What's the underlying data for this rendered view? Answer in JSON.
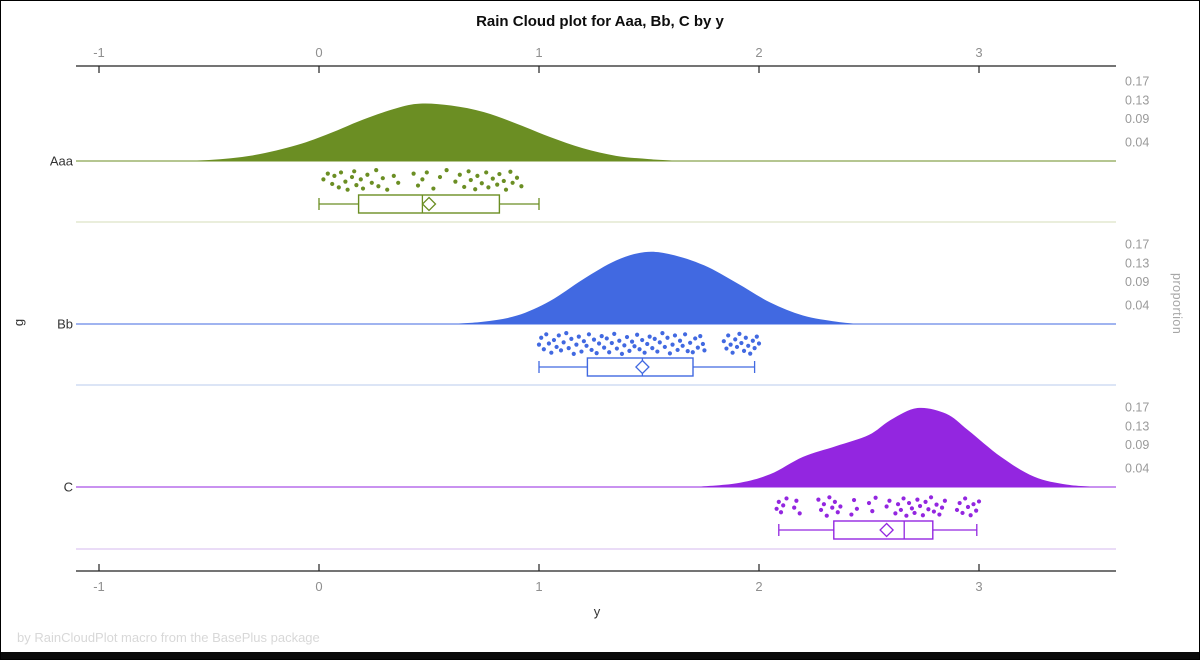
{
  "title": "Rain Cloud plot for Aaa, Bb, C by y",
  "footer": "by RainCloudPlot macro from the BasePlus package",
  "axes": {
    "x_label": "y",
    "y_label": "g",
    "y2_label": "proportion",
    "x_ticks": [
      -1,
      0,
      1,
      2,
      3
    ],
    "x_range": [
      -1.1,
      3.62
    ],
    "proportion_ticks": [
      0.17,
      0.13,
      0.09,
      0.04
    ]
  },
  "chart_data": {
    "type": "raincloud",
    "title": "Rain Cloud plot for Aaa, Bb, C by y",
    "xlabel": "y",
    "ylabel": "g",
    "y2label": "proportion",
    "x_ticks": [
      -1,
      0,
      1,
      2,
      3
    ],
    "proportion_ticks": [
      0.17,
      0.13,
      0.09,
      0.04
    ],
    "groups": [
      {
        "name": "Aaa",
        "color": "#6B8E23",
        "separator_color": "#DDE3C6",
        "density": {
          "x": [
            -0.7,
            -0.5,
            -0.3,
            -0.1,
            0.05,
            0.2,
            0.35,
            0.46,
            0.6,
            0.75,
            0.9,
            1.05,
            1.2,
            1.35,
            1.5,
            1.65
          ],
          "y": [
            0,
            0.002,
            0.012,
            0.034,
            0.059,
            0.088,
            0.112,
            0.122,
            0.118,
            0.104,
            0.079,
            0.051,
            0.027,
            0.011,
            0.004,
            0
          ]
        },
        "box": {
          "low": 0.0,
          "q1": 0.18,
          "median": 0.47,
          "mean": 0.5,
          "q3": 0.82,
          "high": 1.0
        },
        "points": [
          [
            0.02,
            0.45
          ],
          [
            0.04,
            0.2
          ],
          [
            0.06,
            0.65
          ],
          [
            0.07,
            0.3
          ],
          [
            0.09,
            0.8
          ],
          [
            0.1,
            0.15
          ],
          [
            0.12,
            0.55
          ],
          [
            0.13,
            0.9
          ],
          [
            0.15,
            0.35
          ],
          [
            0.16,
            0.1
          ],
          [
            0.17,
            0.7
          ],
          [
            0.19,
            0.45
          ],
          [
            0.2,
            0.85
          ],
          [
            0.22,
            0.25
          ],
          [
            0.24,
            0.6
          ],
          [
            0.26,
            0.05
          ],
          [
            0.27,
            0.75
          ],
          [
            0.29,
            0.4
          ],
          [
            0.31,
            0.9
          ],
          [
            0.34,
            0.3
          ],
          [
            0.36,
            0.6
          ],
          [
            0.43,
            0.2
          ],
          [
            0.45,
            0.72
          ],
          [
            0.47,
            0.45
          ],
          [
            0.49,
            0.15
          ],
          [
            0.52,
            0.85
          ],
          [
            0.55,
            0.35
          ],
          [
            0.58,
            0.05
          ],
          [
            0.62,
            0.55
          ],
          [
            0.64,
            0.25
          ],
          [
            0.66,
            0.78
          ],
          [
            0.68,
            0.1
          ],
          [
            0.69,
            0.48
          ],
          [
            0.71,
            0.88
          ],
          [
            0.72,
            0.3
          ],
          [
            0.74,
            0.62
          ],
          [
            0.76,
            0.15
          ],
          [
            0.77,
            0.8
          ],
          [
            0.79,
            0.42
          ],
          [
            0.81,
            0.68
          ],
          [
            0.82,
            0.22
          ],
          [
            0.84,
            0.52
          ],
          [
            0.85,
            0.9
          ],
          [
            0.87,
            0.12
          ],
          [
            0.88,
            0.6
          ],
          [
            0.9,
            0.38
          ],
          [
            0.92,
            0.75
          ]
        ]
      },
      {
        "name": "Bb",
        "color": "#4169E1",
        "separator_color": "#C8D5F1",
        "density": {
          "x": [
            0.6,
            0.75,
            0.9,
            1.05,
            1.2,
            1.35,
            1.48,
            1.6,
            1.75,
            1.9,
            2.05,
            2.2,
            2.35,
            2.45
          ],
          "y": [
            0,
            0.005,
            0.018,
            0.049,
            0.095,
            0.135,
            0.153,
            0.148,
            0.125,
            0.087,
            0.046,
            0.018,
            0.005,
            0
          ]
        },
        "box": {
          "low": 1.0,
          "q1": 1.22,
          "median": 1.47,
          "mean": 1.47,
          "q3": 1.7,
          "high": 1.98
        },
        "points": [
          [
            1.0,
            0.55
          ],
          [
            1.01,
            0.25
          ],
          [
            1.022,
            0.75
          ],
          [
            1.033,
            0.1
          ],
          [
            1.045,
            0.5
          ],
          [
            1.056,
            0.9
          ],
          [
            1.068,
            0.35
          ],
          [
            1.08,
            0.65
          ],
          [
            1.09,
            0.15
          ],
          [
            1.1,
            0.8
          ],
          [
            1.112,
            0.45
          ],
          [
            1.124,
            0.05
          ],
          [
            1.135,
            0.7
          ],
          [
            1.147,
            0.3
          ],
          [
            1.158,
            0.95
          ],
          [
            1.17,
            0.55
          ],
          [
            1.181,
            0.2
          ],
          [
            1.193,
            0.85
          ],
          [
            1.204,
            0.4
          ],
          [
            1.216,
            0.6
          ],
          [
            1.227,
            0.1
          ],
          [
            1.239,
            0.78
          ],
          [
            1.25,
            0.33
          ],
          [
            1.262,
            0.92
          ],
          [
            1.273,
            0.5
          ],
          [
            1.285,
            0.18
          ],
          [
            1.296,
            0.68
          ],
          [
            1.308,
            0.28
          ],
          [
            1.319,
            0.88
          ],
          [
            1.331,
            0.48
          ],
          [
            1.342,
            0.08
          ],
          [
            1.354,
            0.72
          ],
          [
            1.365,
            0.38
          ],
          [
            1.377,
            0.95
          ],
          [
            1.388,
            0.58
          ],
          [
            1.4,
            0.22
          ],
          [
            1.411,
            0.82
          ],
          [
            1.423,
            0.42
          ],
          [
            1.434,
            0.62
          ],
          [
            1.446,
            0.12
          ],
          [
            1.457,
            0.75
          ],
          [
            1.469,
            0.35
          ],
          [
            1.48,
            0.9
          ],
          [
            1.492,
            0.52
          ],
          [
            1.503,
            0.2
          ],
          [
            1.515,
            0.7
          ],
          [
            1.526,
            0.3
          ],
          [
            1.538,
            0.85
          ],
          [
            1.549,
            0.45
          ],
          [
            1.561,
            0.05
          ],
          [
            1.572,
            0.65
          ],
          [
            1.584,
            0.25
          ],
          [
            1.595,
            0.93
          ],
          [
            1.607,
            0.55
          ],
          [
            1.618,
            0.15
          ],
          [
            1.63,
            0.78
          ],
          [
            1.641,
            0.38
          ],
          [
            1.653,
            0.6
          ],
          [
            1.664,
            0.1
          ],
          [
            1.676,
            0.83
          ],
          [
            1.687,
            0.47
          ],
          [
            1.699,
            0.88
          ],
          [
            1.71,
            0.28
          ],
          [
            1.722,
            0.68
          ],
          [
            1.733,
            0.18
          ],
          [
            1.745,
            0.52
          ],
          [
            1.752,
            0.8
          ],
          [
            1.84,
            0.4
          ],
          [
            1.852,
            0.72
          ],
          [
            1.86,
            0.15
          ],
          [
            1.871,
            0.55
          ],
          [
            1.88,
            0.9
          ],
          [
            1.892,
            0.32
          ],
          [
            1.9,
            0.65
          ],
          [
            1.911,
            0.08
          ],
          [
            1.92,
            0.48
          ],
          [
            1.932,
            0.82
          ],
          [
            1.94,
            0.25
          ],
          [
            1.951,
            0.6
          ],
          [
            1.96,
            0.94
          ],
          [
            1.972,
            0.38
          ],
          [
            1.98,
            0.7
          ],
          [
            1.99,
            0.2
          ],
          [
            2.0,
            0.5
          ]
        ]
      },
      {
        "name": "C",
        "color": "#9326E0",
        "separator_color": "#DDC6F2",
        "density": {
          "x": [
            1.7,
            1.9,
            2.05,
            2.2,
            2.35,
            2.5,
            2.6,
            2.72,
            2.85,
            2.95,
            3.1,
            3.25,
            3.4,
            3.55
          ],
          "y": [
            0,
            0.008,
            0.027,
            0.064,
            0.087,
            0.111,
            0.143,
            0.168,
            0.156,
            0.121,
            0.064,
            0.022,
            0.005,
            0
          ]
        },
        "box": {
          "low": 2.09,
          "q1": 2.34,
          "median": 2.66,
          "mean": 2.58,
          "q3": 2.79,
          "high": 2.99
        },
        "points": [
          [
            2.08,
            0.6
          ],
          [
            2.09,
            0.3
          ],
          [
            2.1,
            0.75
          ],
          [
            2.11,
            0.45
          ],
          [
            2.125,
            0.15
          ],
          [
            2.16,
            0.55
          ],
          [
            2.17,
            0.25
          ],
          [
            2.185,
            0.8
          ],
          [
            2.27,
            0.2
          ],
          [
            2.282,
            0.65
          ],
          [
            2.295,
            0.4
          ],
          [
            2.308,
            0.9
          ],
          [
            2.32,
            0.1
          ],
          [
            2.333,
            0.55
          ],
          [
            2.345,
            0.3
          ],
          [
            2.358,
            0.75
          ],
          [
            2.37,
            0.5
          ],
          [
            2.42,
            0.85
          ],
          [
            2.432,
            0.22
          ],
          [
            2.445,
            0.6
          ],
          [
            2.5,
            0.35
          ],
          [
            2.515,
            0.7
          ],
          [
            2.53,
            0.12
          ],
          [
            2.58,
            0.5
          ],
          [
            2.593,
            0.25
          ],
          [
            2.62,
            0.8
          ],
          [
            2.632,
            0.4
          ],
          [
            2.645,
            0.65
          ],
          [
            2.657,
            0.15
          ],
          [
            2.67,
            0.9
          ],
          [
            2.682,
            0.35
          ],
          [
            2.695,
            0.58
          ],
          [
            2.707,
            0.78
          ],
          [
            2.72,
            0.2
          ],
          [
            2.732,
            0.48
          ],
          [
            2.745,
            0.88
          ],
          [
            2.757,
            0.3
          ],
          [
            2.77,
            0.62
          ],
          [
            2.782,
            0.1
          ],
          [
            2.795,
            0.72
          ],
          [
            2.807,
            0.42
          ],
          [
            2.82,
            0.85
          ],
          [
            2.832,
            0.55
          ],
          [
            2.845,
            0.25
          ],
          [
            2.9,
            0.65
          ],
          [
            2.912,
            0.35
          ],
          [
            2.925,
            0.78
          ],
          [
            2.937,
            0.15
          ],
          [
            2.95,
            0.52
          ],
          [
            2.962,
            0.88
          ],
          [
            2.975,
            0.4
          ],
          [
            2.987,
            0.68
          ],
          [
            3.0,
            0.28
          ]
        ]
      }
    ]
  }
}
